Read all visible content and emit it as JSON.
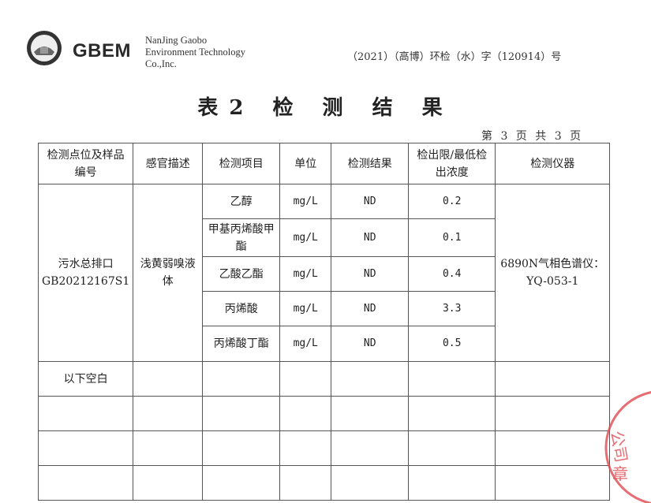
{
  "header": {
    "brand": "GBEM",
    "company_lines": [
      "NanJing Gaobo",
      "Environment Technology",
      "Co.,Inc."
    ],
    "doc_number": "（2021）（高博）环检（水）字（120914）号"
  },
  "title": "表2  检 测 结 果",
  "page_info": "第 3 页 共 3 页",
  "table": {
    "headers": [
      "检测点位及样品编号",
      "感官描述",
      "检测项目",
      "单位",
      "检测结果",
      "检出限/最低检出浓度",
      "检测仪器"
    ],
    "sample_id": "污水总排口GB20212167S1",
    "description": "浅黄弱嗅液体",
    "instrument": "6890N气相色谱仪：YQ-053-1",
    "rows": [
      {
        "item": "乙醇",
        "unit": "mg/L",
        "result": "ND",
        "limit": "0.2"
      },
      {
        "item": "甲基丙烯酸甲酯",
        "unit": "mg/L",
        "result": "ND",
        "limit": "0.1"
      },
      {
        "item": "乙酸乙酯",
        "unit": "mg/L",
        "result": "ND",
        "limit": "0.4"
      },
      {
        "item": "丙烯酸",
        "unit": "mg/L",
        "result": "ND",
        "limit": "3.3"
      },
      {
        "item": "丙烯酸丁酯",
        "unit": "mg/L",
        "result": "ND",
        "limit": "0.5"
      }
    ],
    "blank_note": "以下空白"
  },
  "stamp_text": "公司 章",
  "colors": {
    "stamp": "#e0484f",
    "text": "#222222",
    "border": "#555555"
  }
}
